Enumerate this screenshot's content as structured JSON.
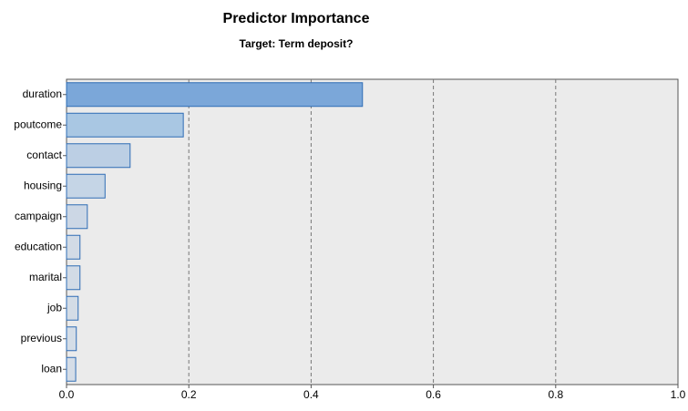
{
  "chart_data": {
    "type": "hbar",
    "title": "Predictor Importance",
    "subtitle": "Target: Term deposit?",
    "categories": [
      "duration",
      "poutcome",
      "contact",
      "housing",
      "campaign",
      "education",
      "marital",
      "job",
      "previous",
      "loan"
    ],
    "values": [
      0.484,
      0.191,
      0.104,
      0.063,
      0.034,
      0.022,
      0.022,
      0.019,
      0.016,
      0.015
    ],
    "colors": [
      "#7ba7d9",
      "#a9c7e3",
      "#bccfe4",
      "#c5d5e6",
      "#ccd7e5",
      "#d2dbe6",
      "#d2dbe6",
      "#d3dce6",
      "#d4dde7",
      "#d5dde7"
    ],
    "xlim": [
      0,
      1
    ],
    "xticks": [
      {
        "value": 0,
        "label": "0.0"
      },
      0.2,
      0.4,
      0.6,
      0.8,
      {
        "value": 1,
        "label": "1.0"
      }
    ],
    "grid": true
  }
}
